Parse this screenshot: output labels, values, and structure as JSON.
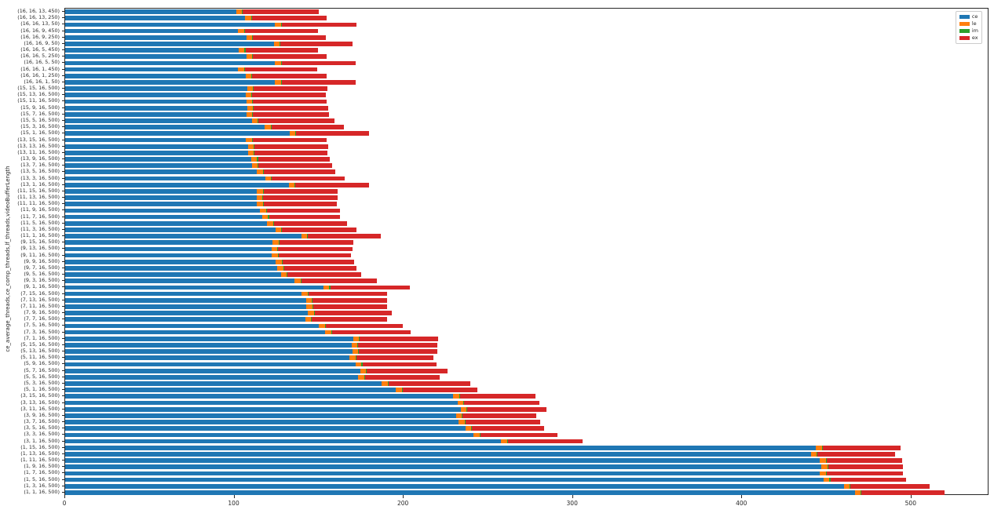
{
  "chart_data": {
    "type": "bar",
    "orientation": "horizontal",
    "stacked": true,
    "title": "",
    "xlabel": "",
    "ylabel": "ce_average_threads,ce_comp_threads,lf_threads,videoBufferLength",
    "xlim": [
      0,
      546
    ],
    "xticks": [
      0,
      100,
      200,
      300,
      400,
      500
    ],
    "grid": false,
    "legend_position": "upper right",
    "categories": [
      "(16, 16, 13, 450)",
      "(16, 16, 13, 250)",
      "(16, 16, 13, 50)",
      "(16, 16, 9, 450)",
      "(16, 16, 9, 250)",
      "(16, 16, 9, 50)",
      "(16, 16, 5, 450)",
      "(16, 16, 5, 250)",
      "(16, 16, 5, 50)",
      "(16, 16, 1, 450)",
      "(16, 16, 1, 250)",
      "(16, 16, 1, 50)",
      "(15, 15, 16, 500)",
      "(15, 13, 16, 500)",
      "(15, 11, 16, 500)",
      "(15, 9, 16, 500)",
      "(15, 7, 16, 500)",
      "(15, 5, 16, 500)",
      "(15, 3, 16, 500)",
      "(15, 1, 16, 500)",
      "(13, 15, 16, 500)",
      "(13, 13, 16, 500)",
      "(13, 11, 16, 500)",
      "(13, 9, 16, 500)",
      "(13, 7, 16, 500)",
      "(13, 5, 16, 500)",
      "(13, 3, 16, 500)",
      "(13, 1, 16, 500)",
      "(11, 15, 16, 500)",
      "(11, 13, 16, 500)",
      "(11, 11, 16, 500)",
      "(11, 9, 16, 500)",
      "(11, 7, 16, 500)",
      "(11, 5, 16, 500)",
      "(11, 3, 16, 500)",
      "(11, 1, 16, 500)",
      "(9, 15, 16, 500)",
      "(9, 13, 16, 500)",
      "(9, 11, 16, 500)",
      "(9, 9, 16, 500)",
      "(9, 7, 16, 500)",
      "(9, 5, 16, 500)",
      "(9, 3, 16, 500)",
      "(9, 1, 16, 500)",
      "(7, 15, 16, 500)",
      "(7, 13, 16, 500)",
      "(7, 11, 16, 500)",
      "(7, 9, 16, 500)",
      "(7, 7, 16, 500)",
      "(7, 5, 16, 500)",
      "(7, 3, 16, 500)",
      "(7, 1, 16, 500)",
      "(5, 15, 16, 500)",
      "(5, 13, 16, 500)",
      "(5, 11, 16, 500)",
      "(5, 9, 16, 500)",
      "(5, 7, 16, 500)",
      "(5, 5, 16, 500)",
      "(5, 3, 16, 500)",
      "(5, 1, 16, 500)",
      "(3, 15, 16, 500)",
      "(3, 13, 16, 500)",
      "(3, 11, 16, 500)",
      "(3, 9, 16, 500)",
      "(3, 7, 16, 500)",
      "(3, 5, 16, 500)",
      "(3, 3, 16, 500)",
      "(3, 1, 16, 500)",
      "(1, 15, 16, 500)",
      "(1, 13, 16, 500)",
      "(1, 11, 16, 500)",
      "(1, 9, 16, 500)",
      "(1, 7, 16, 500)",
      "(1, 5, 16, 500)",
      "(1, 3, 16, 500)",
      "(1, 1, 16, 500)"
    ],
    "series": [
      {
        "name": "ce",
        "color": "#1f77b4",
        "values": [
          101.0,
          106.3,
          124.0,
          102.2,
          107.1,
          123.3,
          102.5,
          107.1,
          124.0,
          102.2,
          106.6,
          124.0,
          107.5,
          106.6,
          107.1,
          107.5,
          107.1,
          110.2,
          117.9,
          132.5,
          106.8,
          107.9,
          107.9,
          109.9,
          110.2,
          113.3,
          118.2,
          132.1,
          113.3,
          113.0,
          113.3,
          115.1,
          116.4,
          119.4,
          124.1,
          139.5,
          122.5,
          121.8,
          122.2,
          124.4,
          125.3,
          127.5,
          135.6,
          152.6,
          139.8,
          142.3,
          142.6,
          143.4,
          141.8,
          150.0,
          153.7,
          170.1,
          169.1,
          169.6,
          168.1,
          171.6,
          174.2,
          173.1,
          187.0,
          195.4,
          229.3,
          231.8,
          233.6,
          230.9,
          232.4,
          236.4,
          241.4,
          257.5,
          443.7,
          440.6,
          445.8,
          446.9,
          445.8,
          448.1,
          460.1,
          466.6
        ]
      },
      {
        "name": "le",
        "color": "#ff7f0e",
        "values": [
          3.5,
          3.5,
          3.5,
          3.5,
          3.5,
          3.5,
          3.5,
          3.5,
          3.5,
          3.5,
          3.5,
          3.5,
          3.5,
          3.5,
          3.5,
          3.5,
          3.5,
          3.5,
          3.5,
          3.5,
          3.5,
          3.5,
          3.5,
          3.5,
          3.5,
          3.5,
          3.5,
          3.5,
          3.5,
          3.5,
          3.5,
          3.5,
          3.5,
          3.5,
          3.5,
          3.5,
          3.5,
          3.5,
          3.5,
          3.5,
          3.5,
          3.5,
          3.5,
          3.5,
          3.5,
          3.5,
          3.5,
          3.5,
          3.5,
          3.5,
          3.5,
          3.5,
          3.5,
          3.5,
          3.5,
          3.5,
          3.5,
          3.5,
          3.5,
          3.5,
          3.5,
          3.5,
          3.5,
          3.5,
          3.5,
          3.5,
          3.5,
          3.5,
          3.5,
          3.5,
          3.5,
          3.5,
          3.5,
          3.5,
          3.5,
          3.5
        ]
      },
      {
        "name": "im",
        "color": "#2ca02c",
        "values": [
          0.5,
          0.5,
          0.5,
          0.5,
          0.5,
          0.5,
          0.5,
          0.5,
          0.5,
          0.5,
          0.5,
          0.5,
          0.5,
          0.5,
          0.5,
          0.5,
          0.5,
          0.5,
          0.5,
          0.5,
          0.5,
          0.5,
          0.5,
          0.5,
          0.5,
          0.5,
          0.5,
          0.5,
          0.5,
          0.5,
          0.5,
          0.5,
          0.5,
          0.5,
          0.5,
          0.5,
          0.5,
          0.5,
          0.5,
          0.5,
          0.5,
          0.5,
          0.5,
          0.5,
          0.5,
          0.5,
          0.5,
          0.5,
          0.5,
          0.5,
          0.5,
          0.5,
          0.5,
          0.5,
          0.5,
          0.5,
          0.5,
          0.5,
          0.5,
          0.5,
          0.5,
          0.5,
          0.5,
          0.5,
          0.5,
          0.5,
          0.5,
          0.5,
          0.5,
          0.5,
          0.5,
          0.5,
          0.5,
          0.5,
          0.5,
          0.5
        ]
      },
      {
        "name": "ex",
        "color": "#d62728",
        "values": [
          45.0,
          44.3,
          43.9,
          43.3,
          43.1,
          42.7,
          43.0,
          43.5,
          43.6,
          42.9,
          43.8,
          43.6,
          43.4,
          43.6,
          43.5,
          43.7,
          44.6,
          44.9,
          42.6,
          43.0,
          43.8,
          43.3,
          43.0,
          42.3,
          43.5,
          42.3,
          42.8,
          43.5,
          43.5,
          43.8,
          43.0,
          43.3,
          42.2,
          43.1,
          43.8,
          43.1,
          43.9,
          43.8,
          42.6,
          42.3,
          42.9,
          43.5,
          44.7,
          47.0,
          46.3,
          44.1,
          43.8,
          45.8,
          44.3,
          45.4,
          46.3,
          46.4,
          46.7,
          46.2,
          45.4,
          43.8,
          47.7,
          44.2,
          48.5,
          44.3,
          44.8,
          44.4,
          47.0,
          43.5,
          44.3,
          42.6,
          45.3,
          44.4,
          46.0,
          45.9,
          44.6,
          44.3,
          45.4,
          44.9,
          46.7,
          49.1
        ]
      }
    ]
  }
}
